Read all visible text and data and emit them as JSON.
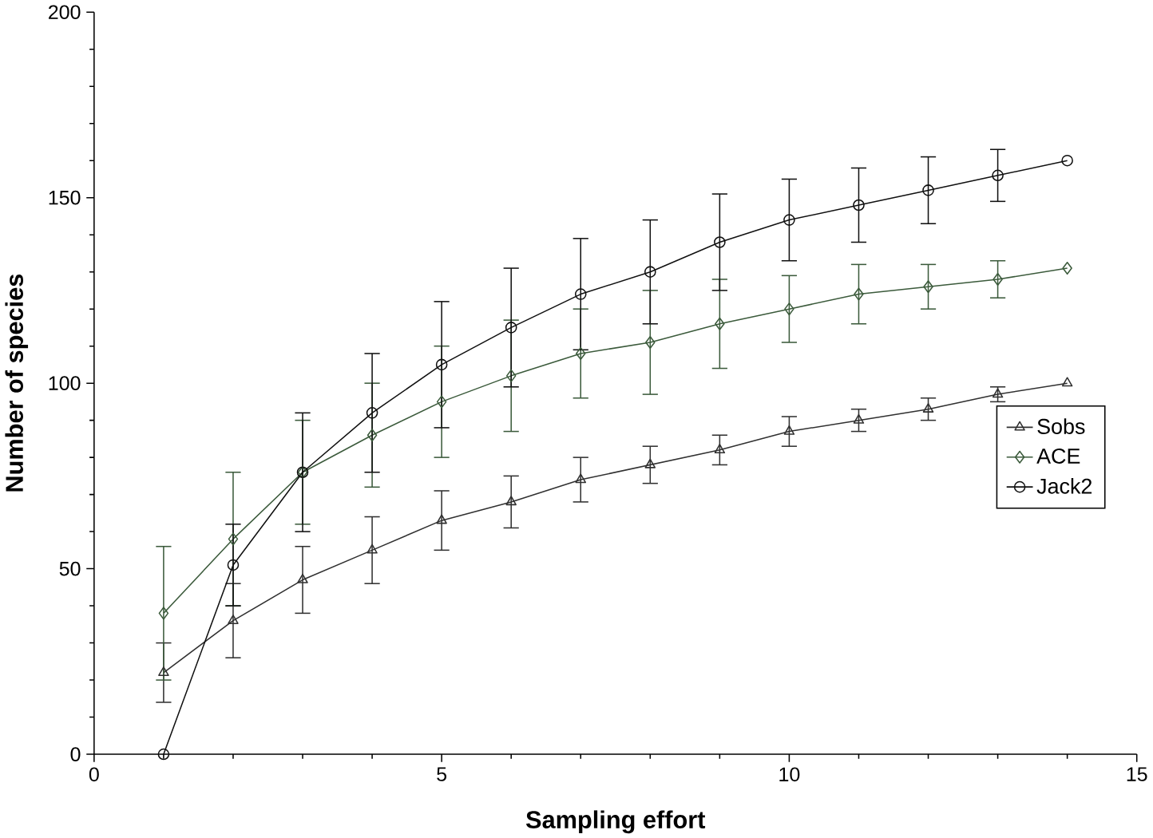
{
  "chart_data": {
    "type": "line",
    "xlabel": "Sampling effort",
    "ylabel": "Number of species",
    "x": [
      1,
      2,
      3,
      4,
      5,
      6,
      7,
      8,
      9,
      10,
      11,
      12,
      13,
      14
    ],
    "series": [
      {
        "name": "Sobs",
        "color": "#303030",
        "marker": "triangle",
        "values": [
          22,
          36,
          47,
          55,
          63,
          68,
          74,
          78,
          82,
          87,
          90,
          93,
          97,
          100
        ],
        "errors": [
          8,
          10,
          9,
          9,
          8,
          7,
          6,
          5,
          4,
          4,
          3,
          3,
          2,
          null
        ]
      },
      {
        "name": "ACE",
        "color": "#3b5a3b",
        "marker": "diamond",
        "values": [
          38,
          58,
          76,
          86,
          95,
          102,
          108,
          111,
          116,
          120,
          124,
          126,
          128,
          131
        ],
        "errors": [
          18,
          18,
          14,
          14,
          15,
          15,
          12,
          14,
          12,
          9,
          8,
          6,
          5,
          null
        ]
      },
      {
        "name": "Jack2",
        "color": "#101010",
        "marker": "circle",
        "values": [
          0,
          51,
          76,
          92,
          105,
          115,
          124,
          130,
          138,
          144,
          148,
          152,
          156,
          160
        ],
        "errors": [
          null,
          11,
          16,
          16,
          17,
          16,
          15,
          14,
          13,
          11,
          10,
          9,
          7,
          null
        ]
      }
    ],
    "xlim": [
      0,
      15
    ],
    "ylim": [
      0,
      200
    ],
    "xticks": [
      0,
      5,
      10,
      15
    ],
    "yticks": [
      0,
      50,
      100,
      150,
      200
    ],
    "grid": false,
    "legend": "right",
    "line_style": "solid"
  }
}
